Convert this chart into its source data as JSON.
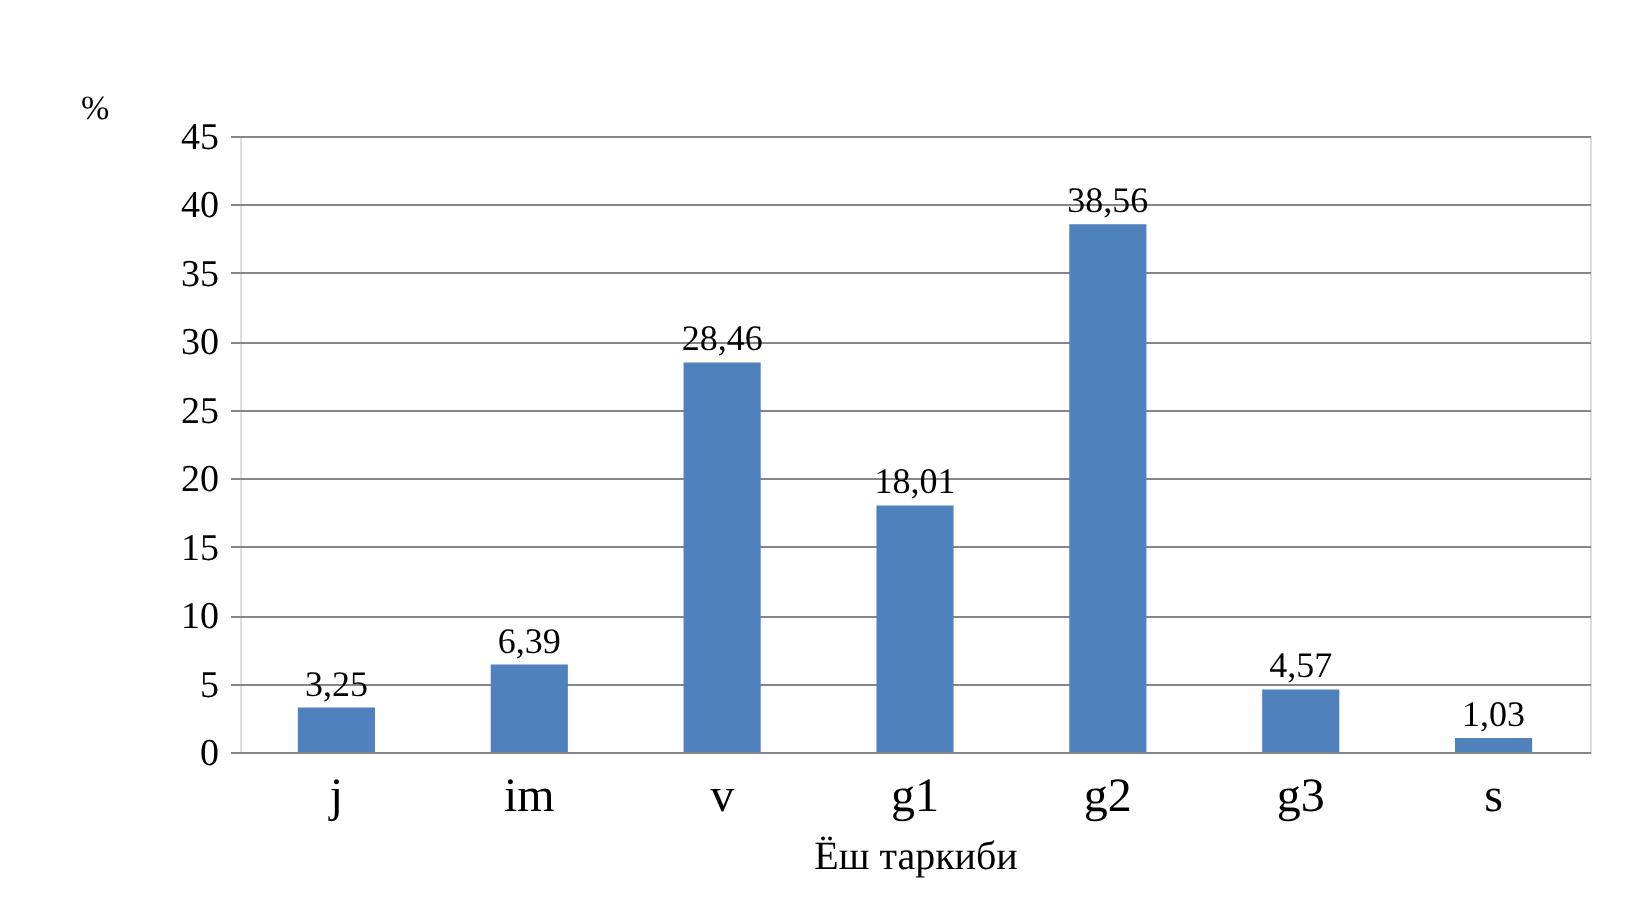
{
  "chart_data": {
    "type": "bar",
    "categories": [
      "j",
      "im",
      "v",
      "g1",
      "g2",
      "g3",
      "s"
    ],
    "values": [
      3.25,
      6.39,
      28.46,
      18.01,
      38.56,
      4.57,
      1.03
    ],
    "value_labels": [
      "3,25",
      "6,39",
      "28,46",
      "18,01",
      "38,56",
      "4,57",
      "1,03"
    ],
    "color": "#4f81bd",
    "xlabel": "Ёш таркиби",
    "ylabel": "%",
    "ylim": [
      0,
      45
    ],
    "yticks": [
      0,
      5,
      10,
      15,
      20,
      25,
      30,
      35,
      40,
      45
    ],
    "grid": "y"
  }
}
